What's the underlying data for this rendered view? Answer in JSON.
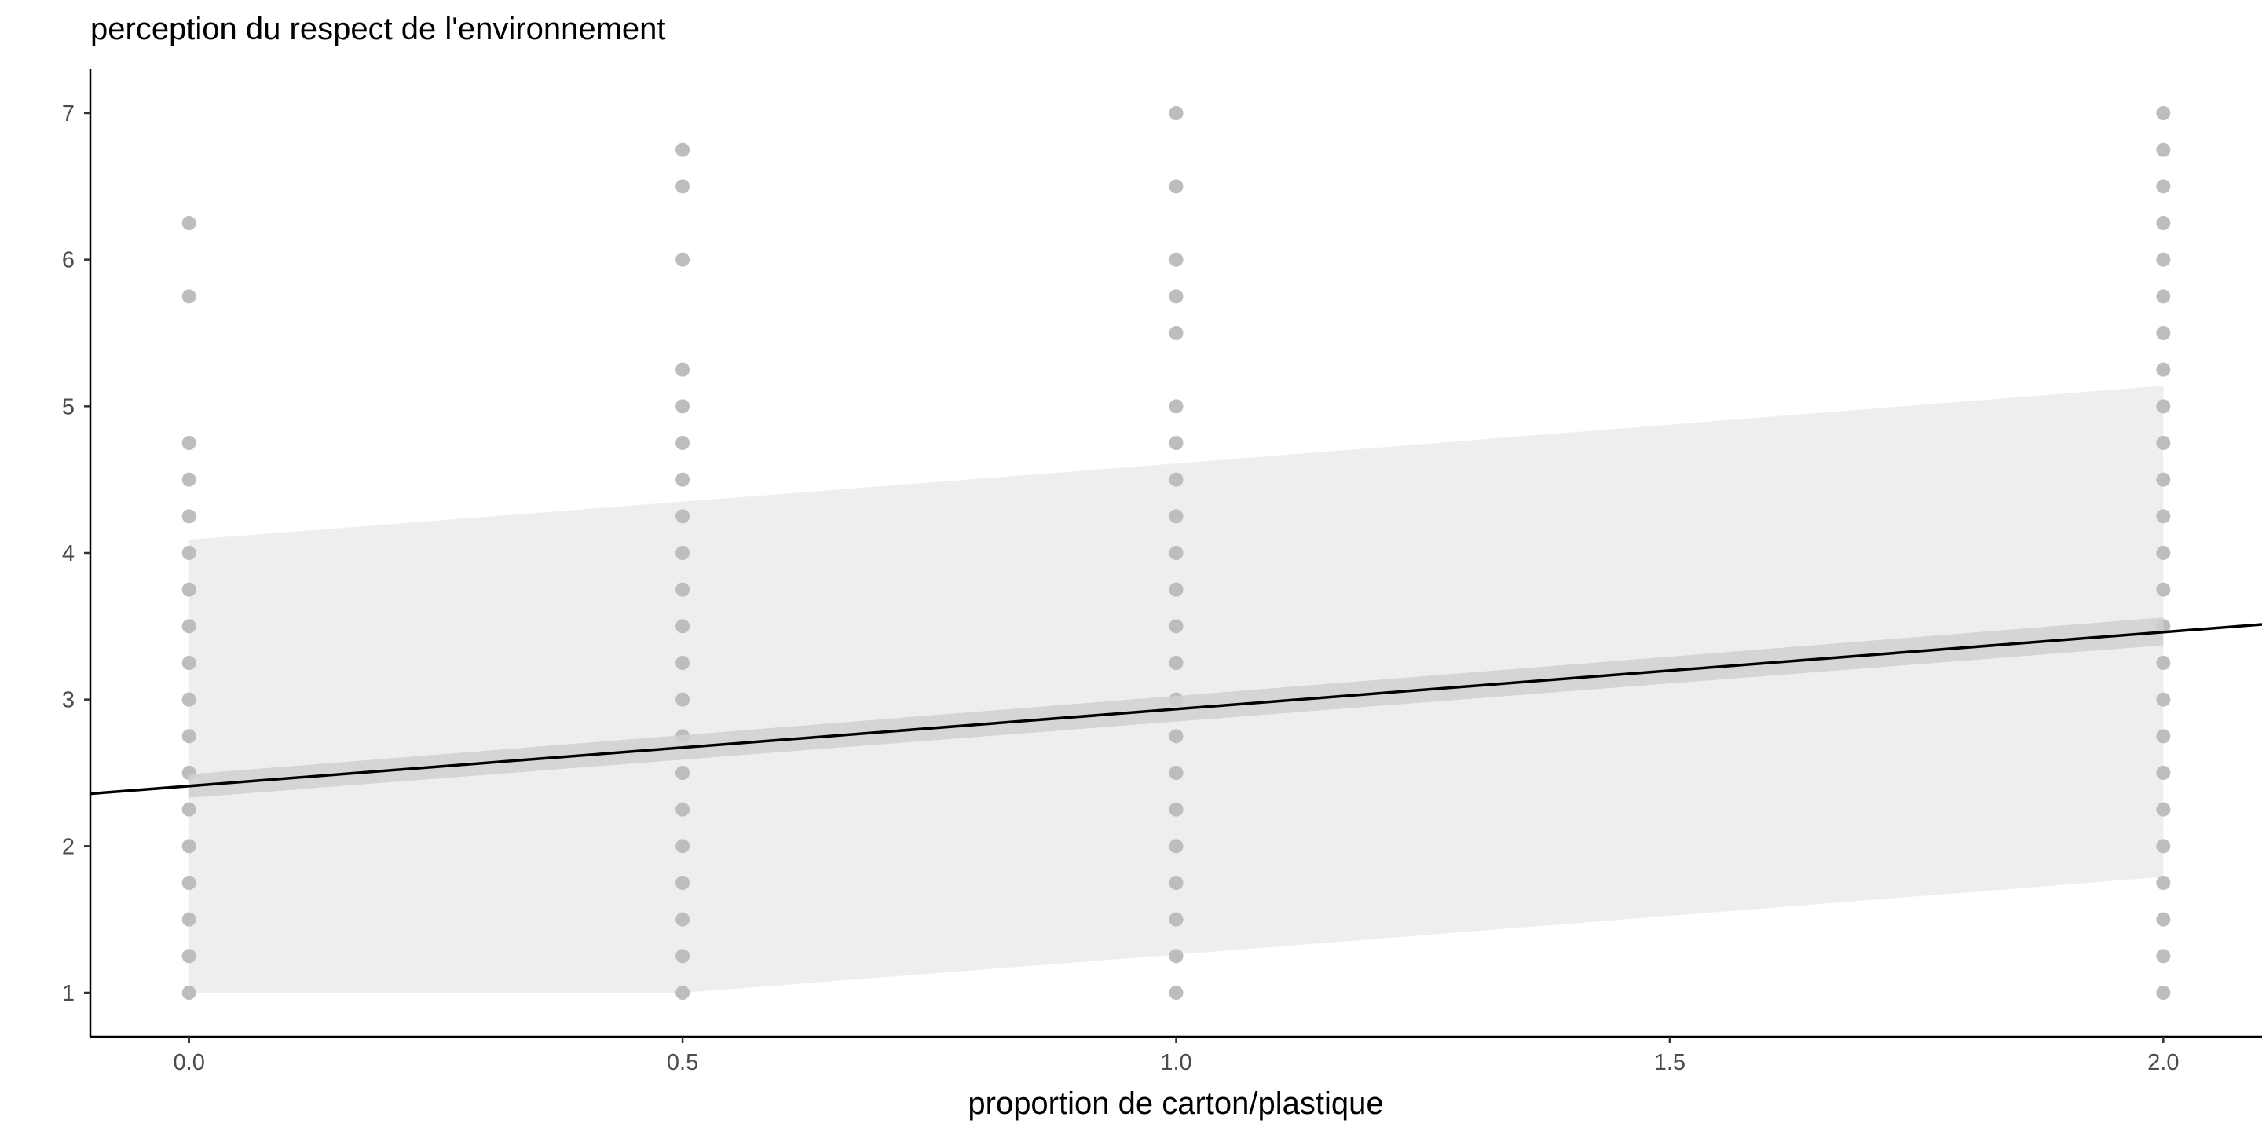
{
  "chart_data": {
    "type": "scatter",
    "title": "",
    "xlabel": "proportion de carton/plastique",
    "ylabel": "perception du respect de l'environnement",
    "xlim": [
      -0.1,
      2.1
    ],
    "ylim": [
      0.7,
      7.3
    ],
    "x_ticks": [
      0.0,
      0.5,
      1.0,
      1.5,
      2.0
    ],
    "x_tick_labels": [
      "0.0",
      "0.5",
      "1.0",
      "1.5",
      "2.0"
    ],
    "y_ticks": [
      1,
      2,
      3,
      4,
      5,
      6,
      7
    ],
    "y_tick_labels": [
      "1",
      "2",
      "3",
      "4",
      "5",
      "6",
      "7"
    ],
    "grid": false,
    "points": [
      {
        "x": 0.0,
        "y": [
          1,
          1.25,
          1.5,
          1.75,
          2,
          2.25,
          2.5,
          2.75,
          3,
          3.25,
          3.5,
          3.75,
          4,
          4.25,
          4.5,
          4.75,
          5.75,
          6.25
        ]
      },
      {
        "x": 0.5,
        "y": [
          1,
          1.25,
          1.5,
          1.75,
          2,
          2.25,
          2.5,
          2.75,
          3,
          3.25,
          3.5,
          3.75,
          4,
          4.25,
          4.5,
          4.75,
          5,
          5.25,
          6,
          6.5,
          6.75
        ]
      },
      {
        "x": 1.0,
        "y": [
          1,
          1.25,
          1.5,
          1.75,
          2,
          2.25,
          2.5,
          2.75,
          3,
          3.25,
          3.5,
          3.75,
          4,
          4.25,
          4.5,
          4.75,
          5,
          5.5,
          5.75,
          6,
          6.5,
          7
        ]
      },
      {
        "x": 2.0,
        "y": [
          1,
          1.25,
          1.5,
          1.75,
          2,
          2.25,
          2.5,
          2.75,
          3,
          3.25,
          3.5,
          3.75,
          4,
          4.25,
          4.5,
          4.75,
          5,
          5.25,
          5.5,
          5.75,
          6,
          6.25,
          6.5,
          6.75,
          7
        ]
      }
    ],
    "regression_line": {
      "intercept": 2.41,
      "slope": 0.525
    },
    "confidence_band": {
      "x": [
        0.0,
        2.0
      ],
      "lower": [
        2.33,
        3.37
      ],
      "upper": [
        2.49,
        3.56
      ]
    },
    "prediction_band": {
      "x": [
        0.0,
        0.5,
        1.0,
        2.0
      ],
      "lower": [
        1.0,
        1.0,
        1.26,
        1.79
      ],
      "upper": [
        4.09,
        4.35,
        4.61,
        5.14
      ]
    },
    "colors": {
      "points": "#bdbdbd",
      "prediction_band": "#eeeeee",
      "confidence_band": "#d0d0d0",
      "line": "#000000",
      "axis": "#000000",
      "tick_label": "#4d4d4d"
    }
  }
}
